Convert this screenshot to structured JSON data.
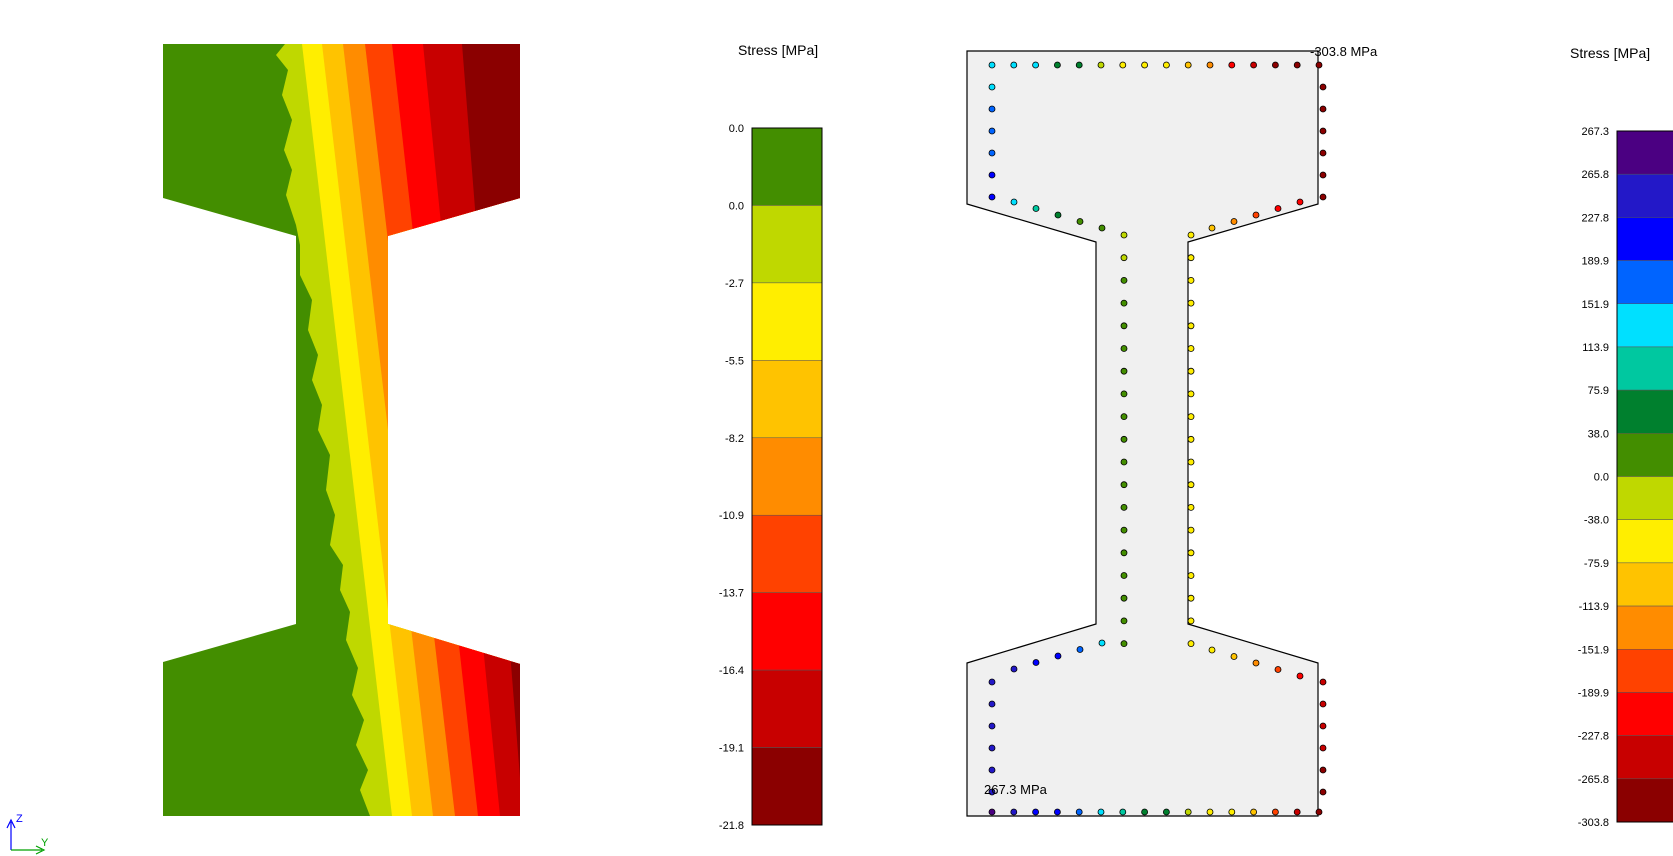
{
  "concrete_plot": {
    "legend_title": "Stress [MPa]",
    "tick_labels": [
      "0.0",
      "0.0",
      "-2.7",
      "-5.5",
      "-8.2",
      "-10.9",
      "-13.7",
      "-16.4",
      "-19.1",
      "-21.8"
    ],
    "band_colors": [
      "#438e00",
      "#bfd800",
      "#ffee00",
      "#ffc300",
      "#ff8c00",
      "#ff4200",
      "#ff0000",
      "#c80000",
      "#8b0000"
    ]
  },
  "steel_plot": {
    "legend_title": "Stress [MPa]",
    "tick_labels": [
      "267.3",
      "265.8",
      "227.8",
      "189.9",
      "151.9",
      "113.9",
      "75.9",
      "38.0",
      "0.0",
      "-38.0",
      "-75.9",
      "-113.9",
      "-151.9",
      "-189.9",
      "-227.8",
      "-265.8",
      "-303.8"
    ],
    "band_colors": [
      "#4b0082",
      "#2318c8",
      "#0000ff",
      "#0064ff",
      "#00e0ff",
      "#00c8a0",
      "#00802e",
      "#438e00",
      "#bfd800",
      "#ffee00",
      "#ffc300",
      "#ff8c00",
      "#ff4200",
      "#ff0000",
      "#c80000",
      "#8b0000"
    ],
    "max_label": "-303.8 MPa",
    "min_label": "267.3 MPa",
    "section_fill": "#f0f0f0"
  },
  "axes_triad": {
    "z_label": "Z",
    "y_label": "Y",
    "z_color": "#0000ff",
    "y_color": "#00a000"
  }
}
